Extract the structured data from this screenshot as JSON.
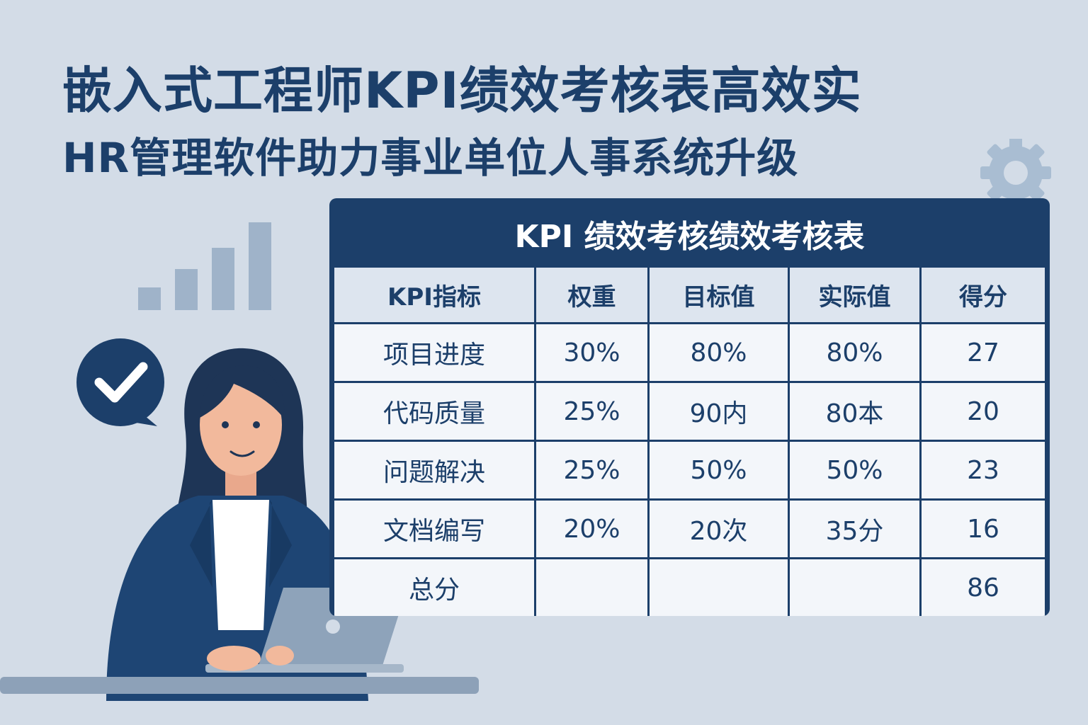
{
  "headline": {
    "line1": "嵌入式工程师KPI绩效考核表高效实",
    "line2": "HR管理软件助力事业单位人事系统升级"
  },
  "table": {
    "title": "KPI 绩效考核绩效考核表",
    "headers": [
      "KPI指标",
      "权重",
      "目标值",
      "实际值",
      "得分"
    ],
    "rows": [
      [
        "项目进度",
        "30%",
        "80%",
        "80%",
        "27"
      ],
      [
        "代码质量",
        "25%",
        "90内",
        "80本",
        "20"
      ],
      [
        "问题解决",
        "25%",
        "50%",
        "50%",
        "23"
      ],
      [
        "文档编写",
        "20%",
        "20次",
        "35分",
        "16"
      ]
    ],
    "total": {
      "label": "总分",
      "score": "86"
    }
  },
  "icons": [
    "bar-chart-icon",
    "checkmark-bubble-icon",
    "gear-icon",
    "laptop-icon"
  ],
  "colors": {
    "background": "#d3dce7",
    "navy": "#1c3f6a",
    "header_cell": "#dde5ef",
    "cell": "#f3f6fa",
    "bar": "#9fb3c9"
  }
}
